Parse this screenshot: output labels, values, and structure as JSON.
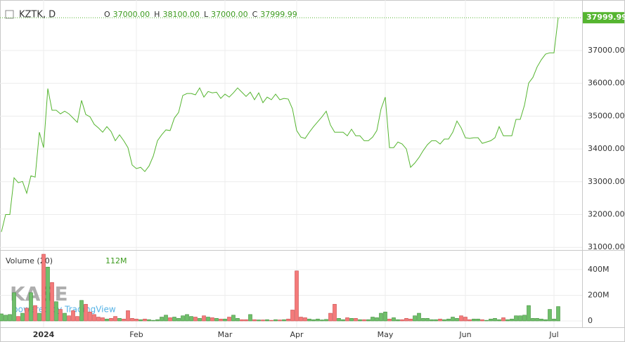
{
  "chart_data": [
    {
      "type": "line",
      "symbol": "KZTK, D",
      "color": "#55b530",
      "ohlc": [
        {
          "key": "O",
          "text": "37000.00"
        },
        {
          "key": "H",
          "text": "38100.00"
        },
        {
          "key": "L",
          "text": "37000.00"
        },
        {
          "key": "C",
          "text": "37999.99"
        }
      ],
      "last_label": {
        "value": 37999.99,
        "label": "37999.99"
      },
      "categories": [
        null,
        null,
        null,
        null,
        null,
        null,
        null,
        null,
        null,
        null,
        "2024",
        null,
        null,
        null,
        null,
        null,
        null,
        null,
        null,
        null,
        null,
        null,
        null,
        null,
        null,
        null,
        null,
        null,
        null,
        null,
        null,
        null,
        "Feb",
        null,
        null,
        null,
        null,
        null,
        null,
        null,
        null,
        null,
        null,
        null,
        null,
        null,
        null,
        null,
        null,
        null,
        null,
        null,
        null,
        "Mar",
        null,
        null,
        null,
        null,
        null,
        null,
        null,
        null,
        null,
        null,
        null,
        null,
        null,
        null,
        null,
        null,
        "Apr",
        null,
        null,
        null,
        null,
        null,
        null,
        null,
        null,
        null,
        null,
        null,
        null,
        null,
        null,
        null,
        null,
        null,
        null,
        null,
        null,
        "May",
        null,
        null,
        null,
        null,
        null,
        null,
        null,
        null,
        null,
        null,
        null,
        null,
        null,
        null,
        null,
        null,
        null,
        null,
        "Jun",
        null,
        null,
        null,
        null,
        null,
        null,
        null,
        null,
        null,
        null,
        null,
        null,
        null,
        null,
        null,
        null,
        null,
        null,
        null,
        null,
        "Jul",
        null
      ],
      "values": [
        31470,
        32000,
        32000,
        33120,
        32970,
        33010,
        32650,
        33180,
        33140,
        34510,
        34040,
        35840,
        35180,
        35180,
        35070,
        35150,
        35070,
        34940,
        34810,
        35480,
        35050,
        34980,
        34750,
        34640,
        34510,
        34680,
        34530,
        34250,
        34430,
        34250,
        34040,
        33510,
        33400,
        33440,
        33310,
        33480,
        33780,
        34250,
        34430,
        34580,
        34560,
        34940,
        35110,
        35630,
        35690,
        35690,
        35650,
        35860,
        35580,
        35750,
        35710,
        35730,
        35540,
        35670,
        35580,
        35710,
        35860,
        35730,
        35600,
        35730,
        35500,
        35710,
        35410,
        35580,
        35500,
        35670,
        35500,
        35540,
        35520,
        35220,
        34560,
        34360,
        34320,
        34510,
        34680,
        34830,
        34980,
        35150,
        34730,
        34510,
        34510,
        34510,
        34400,
        34600,
        34400,
        34400,
        34250,
        34250,
        34360,
        34560,
        35220,
        35580,
        34040,
        34040,
        34210,
        34150,
        34000,
        33440,
        33570,
        33740,
        33950,
        34130,
        34250,
        34250,
        34150,
        34300,
        34300,
        34510,
        34850,
        34640,
        34340,
        34320,
        34340,
        34340,
        34170,
        34210,
        34250,
        34340,
        34680,
        34400,
        34400,
        34400,
        34900,
        34900,
        35330,
        36010,
        36180,
        36500,
        36720,
        36890,
        36930,
        36930,
        37999.99
      ],
      "ylim": [
        30940,
        38540
      ],
      "yticks": [
        {
          "value": 31000,
          "label": "31000.00"
        },
        {
          "value": 32000,
          "label": "32000.00"
        },
        {
          "value": 33000,
          "label": "33000.00"
        },
        {
          "value": 34000,
          "label": "34000.00"
        },
        {
          "value": 35000,
          "label": "35000.00"
        },
        {
          "value": 36000,
          "label": "36000.00"
        },
        {
          "value": 37000,
          "label": "37000.00"
        }
      ],
      "grid": true
    },
    {
      "type": "bar",
      "title": "Volume (20)",
      "legend_value": {
        "value": 112,
        "label": "112M"
      },
      "up_color": "#6fbf6a",
      "down_color": "#f47a7a",
      "values": [
        55,
        45,
        50,
        220,
        35,
        60,
        100,
        220,
        120,
        60,
        520,
        420,
        300,
        150,
        90,
        60,
        40,
        80,
        35,
        160,
        130,
        70,
        50,
        30,
        25,
        15,
        20,
        35,
        20,
        15,
        80,
        20,
        15,
        10,
        15,
        10,
        5,
        10,
        30,
        45,
        25,
        30,
        20,
        40,
        50,
        35,
        30,
        20,
        40,
        30,
        25,
        20,
        15,
        15,
        30,
        45,
        20,
        10,
        10,
        50,
        10,
        8,
        8,
        10,
        5,
        10,
        8,
        10,
        15,
        85,
        390,
        30,
        25,
        15,
        10,
        15,
        8,
        12,
        60,
        130,
        20,
        10,
        25,
        20,
        20,
        10,
        10,
        10,
        30,
        25,
        60,
        70,
        15,
        25,
        10,
        10,
        20,
        15,
        40,
        60,
        20,
        20,
        10,
        10,
        15,
        10,
        15,
        30,
        20,
        40,
        30,
        10,
        15,
        15,
        10,
        5,
        15,
        20,
        10,
        25,
        10,
        15,
        40,
        40,
        45,
        120,
        20,
        20,
        15,
        10,
        90,
        15,
        112
      ],
      "ylim": [
        0,
        542
      ],
      "yticks": [
        {
          "value": 0,
          "label": "0"
        },
        {
          "value": 200,
          "label": "200M"
        },
        {
          "value": 400,
          "label": "400M"
        }
      ],
      "grid": true
    }
  ],
  "watermark": {
    "logo": "KASE",
    "credit": "powered by TradingView"
  }
}
